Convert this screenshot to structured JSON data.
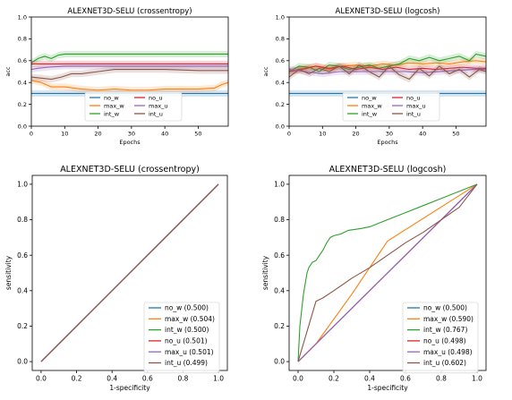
{
  "chart_data": [
    {
      "type": "line",
      "title": "ALEXNET3D-SELU (crossentropy)",
      "xlabel": "Epochs",
      "ylabel": "acc",
      "xlim": [
        0,
        59
      ],
      "ylim": [
        0,
        1
      ],
      "xticks": [
        0,
        10,
        20,
        30,
        40,
        50
      ],
      "yticks": [
        0.0,
        0.2,
        0.4,
        0.6,
        0.8,
        1.0
      ],
      "legend_position": "lower-center",
      "legend_columns": 2,
      "series": [
        {
          "name": "no_w",
          "color": "#1f77b4",
          "values": [
            [
              0,
              0.3
            ],
            [
              59,
              0.3
            ]
          ]
        },
        {
          "name": "max_w",
          "color": "#ff7f0e",
          "values": [
            [
              0,
              0.42
            ],
            [
              3,
              0.4
            ],
            [
              6,
              0.36
            ],
            [
              10,
              0.36
            ],
            [
              15,
              0.34
            ],
            [
              20,
              0.33
            ],
            [
              25,
              0.34
            ],
            [
              30,
              0.33
            ],
            [
              35,
              0.33
            ],
            [
              40,
              0.34
            ],
            [
              45,
              0.34
            ],
            [
              50,
              0.34
            ],
            [
              55,
              0.35
            ],
            [
              57,
              0.38
            ],
            [
              59,
              0.4
            ]
          ]
        },
        {
          "name": "int_w",
          "color": "#2ca02c",
          "values": [
            [
              0,
              0.58
            ],
            [
              2,
              0.62
            ],
            [
              4,
              0.64
            ],
            [
              6,
              0.62
            ],
            [
              8,
              0.65
            ],
            [
              10,
              0.66
            ],
            [
              14,
              0.66
            ],
            [
              20,
              0.66
            ],
            [
              30,
              0.66
            ],
            [
              40,
              0.66
            ],
            [
              50,
              0.66
            ],
            [
              59,
              0.66
            ]
          ]
        },
        {
          "name": "no_u",
          "color": "#d62728",
          "values": [
            [
              0,
              0.57
            ],
            [
              59,
              0.57
            ]
          ]
        },
        {
          "name": "max_u",
          "color": "#9467bd",
          "values": [
            [
              0,
              0.52
            ],
            [
              2,
              0.53
            ],
            [
              5,
              0.54
            ],
            [
              10,
              0.55
            ],
            [
              20,
              0.55
            ],
            [
              30,
              0.55
            ],
            [
              40,
              0.55
            ],
            [
              50,
              0.55
            ],
            [
              59,
              0.55
            ]
          ]
        },
        {
          "name": "int_u",
          "color": "#8c564b",
          "values": [
            [
              0,
              0.45
            ],
            [
              3,
              0.44
            ],
            [
              6,
              0.43
            ],
            [
              9,
              0.45
            ],
            [
              12,
              0.48
            ],
            [
              15,
              0.48
            ],
            [
              20,
              0.5
            ],
            [
              25,
              0.52
            ],
            [
              30,
              0.52
            ],
            [
              40,
              0.52
            ],
            [
              50,
              0.51
            ],
            [
              59,
              0.51
            ]
          ]
        }
      ]
    },
    {
      "type": "line",
      "title": "ALEXNET3D-SELU (logcosh)",
      "xlabel": "Epochs",
      "ylabel": "acc",
      "xlim": [
        0,
        59
      ],
      "ylim": [
        0,
        1
      ],
      "xticks": [
        0,
        10,
        20,
        30,
        40,
        50
      ],
      "yticks": [
        0.0,
        0.2,
        0.4,
        0.6,
        0.8,
        1.0
      ],
      "legend_position": "lower-center",
      "legend_columns": 2,
      "series": [
        {
          "name": "no_w",
          "color": "#1f77b4",
          "values": [
            [
              0,
              0.3
            ],
            [
              59,
              0.3
            ]
          ]
        },
        {
          "name": "max_w",
          "color": "#ff7f0e",
          "values": [
            [
              0,
              0.5
            ],
            [
              4,
              0.53
            ],
            [
              8,
              0.55
            ],
            [
              12,
              0.52
            ],
            [
              16,
              0.55
            ],
            [
              20,
              0.56
            ],
            [
              24,
              0.55
            ],
            [
              28,
              0.57
            ],
            [
              32,
              0.56
            ],
            [
              36,
              0.58
            ],
            [
              40,
              0.57
            ],
            [
              44,
              0.58
            ],
            [
              48,
              0.57
            ],
            [
              52,
              0.59
            ],
            [
              56,
              0.6
            ],
            [
              59,
              0.59
            ]
          ]
        },
        {
          "name": "int_w",
          "color": "#2ca02c",
          "values": [
            [
              0,
              0.5
            ],
            [
              3,
              0.55
            ],
            [
              6,
              0.54
            ],
            [
              9,
              0.5
            ],
            [
              12,
              0.56
            ],
            [
              15,
              0.55
            ],
            [
              18,
              0.52
            ],
            [
              21,
              0.54
            ],
            [
              24,
              0.56
            ],
            [
              27,
              0.53
            ],
            [
              30,
              0.55
            ],
            [
              33,
              0.57
            ],
            [
              36,
              0.62
            ],
            [
              39,
              0.6
            ],
            [
              42,
              0.63
            ],
            [
              45,
              0.6
            ],
            [
              48,
              0.62
            ],
            [
              51,
              0.64
            ],
            [
              54,
              0.6
            ],
            [
              56,
              0.66
            ],
            [
              59,
              0.64
            ]
          ]
        },
        {
          "name": "no_u",
          "color": "#d62728",
          "values": [
            [
              0,
              0.5
            ],
            [
              4,
              0.52
            ],
            [
              8,
              0.55
            ],
            [
              12,
              0.53
            ],
            [
              16,
              0.55
            ],
            [
              20,
              0.52
            ],
            [
              24,
              0.54
            ],
            [
              28,
              0.52
            ],
            [
              32,
              0.54
            ],
            [
              36,
              0.52
            ],
            [
              40,
              0.53
            ],
            [
              44,
              0.52
            ],
            [
              48,
              0.53
            ],
            [
              52,
              0.54
            ],
            [
              56,
              0.53
            ],
            [
              59,
              0.53
            ]
          ]
        },
        {
          "name": "max_u",
          "color": "#9467bd",
          "values": [
            [
              0,
              0.52
            ],
            [
              5,
              0.5
            ],
            [
              10,
              0.48
            ],
            [
              15,
              0.5
            ],
            [
              20,
              0.5
            ],
            [
              25,
              0.5
            ],
            [
              30,
              0.5
            ],
            [
              35,
              0.5
            ],
            [
              40,
              0.49
            ],
            [
              45,
              0.5
            ],
            [
              50,
              0.51
            ],
            [
              55,
              0.52
            ],
            [
              59,
              0.52
            ]
          ]
        },
        {
          "name": "int_u",
          "color": "#8c564b",
          "values": [
            [
              0,
              0.45
            ],
            [
              3,
              0.52
            ],
            [
              6,
              0.48
            ],
            [
              9,
              0.53
            ],
            [
              12,
              0.5
            ],
            [
              15,
              0.55
            ],
            [
              18,
              0.48
            ],
            [
              21,
              0.56
            ],
            [
              24,
              0.5
            ],
            [
              27,
              0.45
            ],
            [
              30,
              0.55
            ],
            [
              33,
              0.47
            ],
            [
              36,
              0.43
            ],
            [
              39,
              0.53
            ],
            [
              42,
              0.46
            ],
            [
              45,
              0.55
            ],
            [
              48,
              0.48
            ],
            [
              51,
              0.52
            ],
            [
              54,
              0.45
            ],
            [
              57,
              0.52
            ],
            [
              59,
              0.5
            ]
          ]
        }
      ]
    },
    {
      "type": "line",
      "title": "ALEXNET3D-SELU (crossentropy)",
      "xlabel": "1-specificity",
      "ylabel": "sensitivity",
      "xlim": [
        -0.05,
        1.05
      ],
      "ylim": [
        -0.05,
        1.05
      ],
      "xticks": [
        0.0,
        0.2,
        0.4,
        0.6,
        0.8,
        1.0
      ],
      "yticks": [
        0.0,
        0.2,
        0.4,
        0.6,
        0.8,
        1.0
      ],
      "legend_position": "lower-right",
      "legend_columns": 1,
      "series": [
        {
          "name": "no_w (0.500)",
          "color": "#1f77b4",
          "values": [
            [
              0,
              0
            ],
            [
              1,
              1
            ]
          ]
        },
        {
          "name": "max_w (0.504)",
          "color": "#ff7f0e",
          "values": [
            [
              0,
              0
            ],
            [
              1,
              1
            ]
          ]
        },
        {
          "name": "int_w (0.500)",
          "color": "#2ca02c",
          "values": [
            [
              0,
              0
            ],
            [
              1,
              1
            ]
          ]
        },
        {
          "name": "no_u (0.501)",
          "color": "#d62728",
          "values": [
            [
              0,
              0
            ],
            [
              1,
              1
            ]
          ]
        },
        {
          "name": "max_u (0.501)",
          "color": "#9467bd",
          "values": [
            [
              0,
              0
            ],
            [
              1,
              1
            ]
          ]
        },
        {
          "name": "int_u (0.499)",
          "color": "#8c564b",
          "values": [
            [
              0,
              0
            ],
            [
              1,
              1
            ]
          ]
        }
      ]
    },
    {
      "type": "line",
      "title": "ALEXNET3D-SELU (logcosh)",
      "xlabel": "1-specificity",
      "ylabel": "sensitivity",
      "xlim": [
        -0.05,
        1.05
      ],
      "ylim": [
        -0.05,
        1.05
      ],
      "xticks": [
        0.0,
        0.2,
        0.4,
        0.6,
        0.8,
        1.0
      ],
      "yticks": [
        0.0,
        0.2,
        0.4,
        0.6,
        0.8,
        1.0
      ],
      "legend_position": "lower-right",
      "legend_columns": 1,
      "series": [
        {
          "name": "no_w (0.500)",
          "color": "#1f77b4",
          "values": [
            [
              0,
              0
            ],
            [
              1,
              1
            ]
          ]
        },
        {
          "name": "max_w (0.590)",
          "color": "#ff7f0e",
          "values": [
            [
              0,
              0
            ],
            [
              0.1,
              0.1
            ],
            [
              0.3,
              0.38
            ],
            [
              0.5,
              0.68
            ],
            [
              1,
              1
            ]
          ]
        },
        {
          "name": "int_w (0.767)",
          "color": "#2ca02c",
          "values": [
            [
              0,
              0
            ],
            [
              0.01,
              0.2
            ],
            [
              0.03,
              0.38
            ],
            [
              0.05,
              0.5
            ],
            [
              0.06,
              0.53
            ],
            [
              0.08,
              0.56
            ],
            [
              0.1,
              0.57
            ],
            [
              0.12,
              0.6
            ],
            [
              0.14,
              0.63
            ],
            [
              0.16,
              0.67
            ],
            [
              0.18,
              0.7
            ],
            [
              0.2,
              0.71
            ],
            [
              0.24,
              0.72
            ],
            [
              0.28,
              0.74
            ],
            [
              0.35,
              0.75
            ],
            [
              0.4,
              0.76
            ],
            [
              0.5,
              0.8
            ],
            [
              0.6,
              0.84
            ],
            [
              0.7,
              0.88
            ],
            [
              0.8,
              0.92
            ],
            [
              0.9,
              0.96
            ],
            [
              1,
              1
            ]
          ]
        },
        {
          "name": "no_u (0.498)",
          "color": "#d62728",
          "values": [
            [
              0,
              0
            ],
            [
              1,
              1
            ]
          ]
        },
        {
          "name": "max_u (0.498)",
          "color": "#9467bd",
          "values": [
            [
              0,
              0
            ],
            [
              1,
              1
            ]
          ]
        },
        {
          "name": "int_u (0.602)",
          "color": "#8c564b",
          "values": [
            [
              0,
              0
            ],
            [
              0.1,
              0.34
            ],
            [
              0.14,
              0.36
            ],
            [
              0.2,
              0.4
            ],
            [
              0.3,
              0.47
            ],
            [
              0.4,
              0.53
            ],
            [
              0.5,
              0.6
            ],
            [
              0.6,
              0.67
            ],
            [
              0.7,
              0.73
            ],
            [
              0.8,
              0.8
            ],
            [
              0.9,
              0.87
            ],
            [
              1,
              1
            ]
          ]
        }
      ]
    }
  ]
}
